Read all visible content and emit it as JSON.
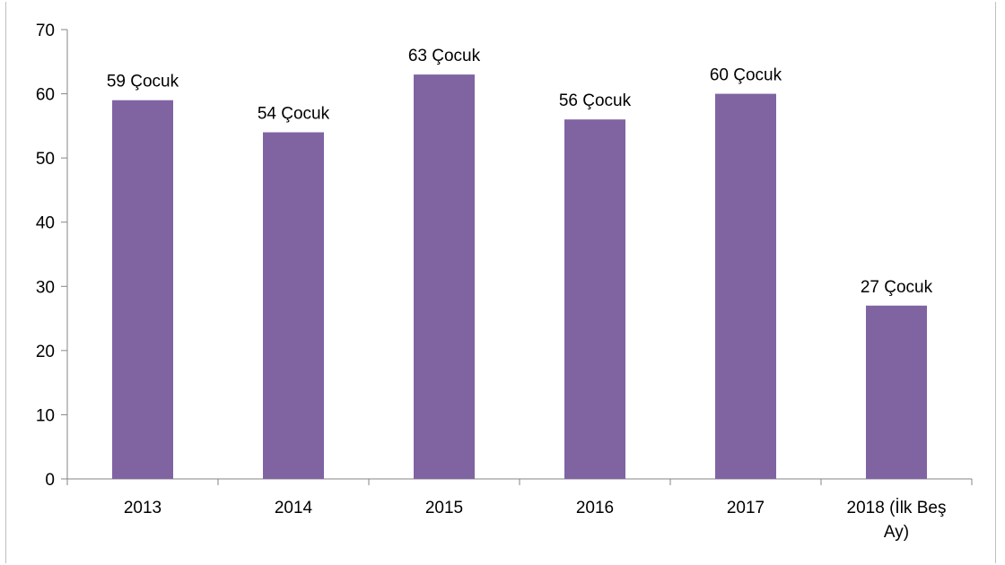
{
  "chart_data": {
    "type": "bar",
    "categories": [
      "2013",
      "2014",
      "2015",
      "2016",
      "2017",
      "2018 (İlk Beş Ay)"
    ],
    "category_lines": [
      [
        "2013"
      ],
      [
        "2014"
      ],
      [
        "2015"
      ],
      [
        "2016"
      ],
      [
        "2017"
      ],
      [
        "2018 (İlk Beş",
        "Ay)"
      ]
    ],
    "values": [
      59,
      54,
      63,
      56,
      60,
      27
    ],
    "data_labels": [
      "59 Çocuk",
      "54 Çocuk",
      "63 Çocuk",
      "56 Çocuk",
      "60 Çocuk",
      "27 Çocuk"
    ],
    "title": "",
    "xlabel": "",
    "ylabel": "",
    "ylim": [
      0,
      70
    ],
    "yticks": [
      "0",
      "10",
      "20",
      "30",
      "40",
      "50",
      "60",
      "70"
    ],
    "grid": false,
    "legend": "none",
    "bar_color": "#8064a2"
  }
}
